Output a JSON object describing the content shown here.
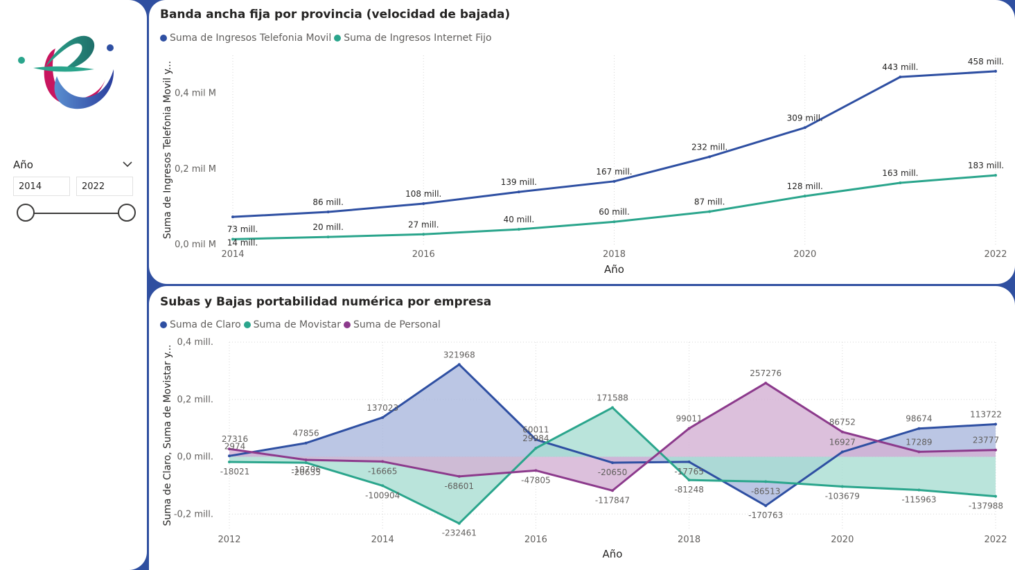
{
  "colors": {
    "claro": "#2e4fa2",
    "movistar": "#2aa58c",
    "personal": "#8c3a8c",
    "background": "#2f4fa0"
  },
  "slicer": {
    "title": "Año",
    "from": "2014",
    "to": "2022",
    "from_value": 2014,
    "to_value": 2022
  },
  "chart_data": [
    {
      "type": "line",
      "title": "Banda ancha fija por provincia (velocidad de bajada)",
      "xlabel": "Año",
      "ylabel": "Suma de Ingresos Telefonia Movil y...",
      "xlim": [
        2014,
        2022
      ],
      "ylim": [
        0,
        0.5
      ],
      "x_ticks": [
        "2014",
        "2016",
        "2018",
        "2020",
        "2022"
      ],
      "y_ticks": [
        {
          "value": 0.0,
          "label": "0,0 mil M"
        },
        {
          "value": 0.2,
          "label": "0,2 mil M"
        },
        {
          "value": 0.4,
          "label": "0,4 mil M"
        }
      ],
      "x": [
        2014,
        2015,
        2016,
        2017,
        2018,
        2019,
        2020,
        2021,
        2022
      ],
      "series": [
        {
          "name": "Suma de Ingresos Telefonia Movil",
          "color": "#2e4fa2",
          "values": [
            0.073,
            0.086,
            0.108,
            0.139,
            0.167,
            0.232,
            0.309,
            0.443,
            0.458
          ],
          "labels": [
            "73 mill.",
            "86 mill.",
            "108 mill.",
            "139 mill.",
            "167 mill.",
            "232 mill.",
            "309 mill.",
            "443 mill.",
            "458 mill."
          ]
        },
        {
          "name": "Suma de Ingresos Internet Fijo",
          "color": "#2aa58c",
          "values": [
            0.014,
            0.02,
            0.027,
            0.04,
            0.06,
            0.087,
            0.128,
            0.163,
            0.183
          ],
          "labels": [
            "14 mill.",
            "20 mill.",
            "27 mill.",
            "40 mill.",
            "60 mill.",
            "87 mill.",
            "128 mill.",
            "163 mill.",
            "183 mill."
          ]
        }
      ]
    },
    {
      "type": "area",
      "title": "Subas y Bajas portabilidad numérica por empresa",
      "xlabel": "Año",
      "ylabel": "Suma de Claro, Suma de Movistar y...",
      "xlim": [
        2012,
        2022
      ],
      "ylim": [
        -0.25,
        0.4
      ],
      "x_ticks": [
        "2012",
        "2014",
        "2016",
        "2018",
        "2020",
        "2022"
      ],
      "y_ticks": [
        {
          "value": 0.4,
          "label": "0,4 mill."
        },
        {
          "value": 0.2,
          "label": "0,2 mill."
        },
        {
          "value": 0.0,
          "label": "0,0 mill."
        },
        {
          "value": -0.2,
          "label": "-0,2 mill."
        }
      ],
      "x": [
        2012,
        2013,
        2014,
        2015,
        2016,
        2017,
        2018,
        2019,
        2020,
        2021,
        2022
      ],
      "series": [
        {
          "name": "Suma de Claro",
          "color": "#2e4fa2",
          "fill": "#aab8dd",
          "values": [
            2974,
            47856,
            137023,
            321968,
            60011,
            -20650,
            -17765,
            -170763,
            16927,
            98674,
            113722
          ]
        },
        {
          "name": "Suma de Movistar",
          "color": "#2aa58c",
          "fill": "#a9ddd2",
          "values": [
            -18021,
            -20635,
            -100904,
            -232461,
            29984,
            171588,
            -81248,
            -86513,
            -103679,
            -115963,
            -137988
          ]
        },
        {
          "name": "Suma de Personal",
          "color": "#8c3a8c",
          "fill": "#d3b0d3",
          "values": [
            27316,
            -10706,
            -16665,
            -68601,
            -47805,
            -117847,
            99011,
            257276,
            86752,
            17289,
            23777
          ]
        }
      ]
    }
  ]
}
